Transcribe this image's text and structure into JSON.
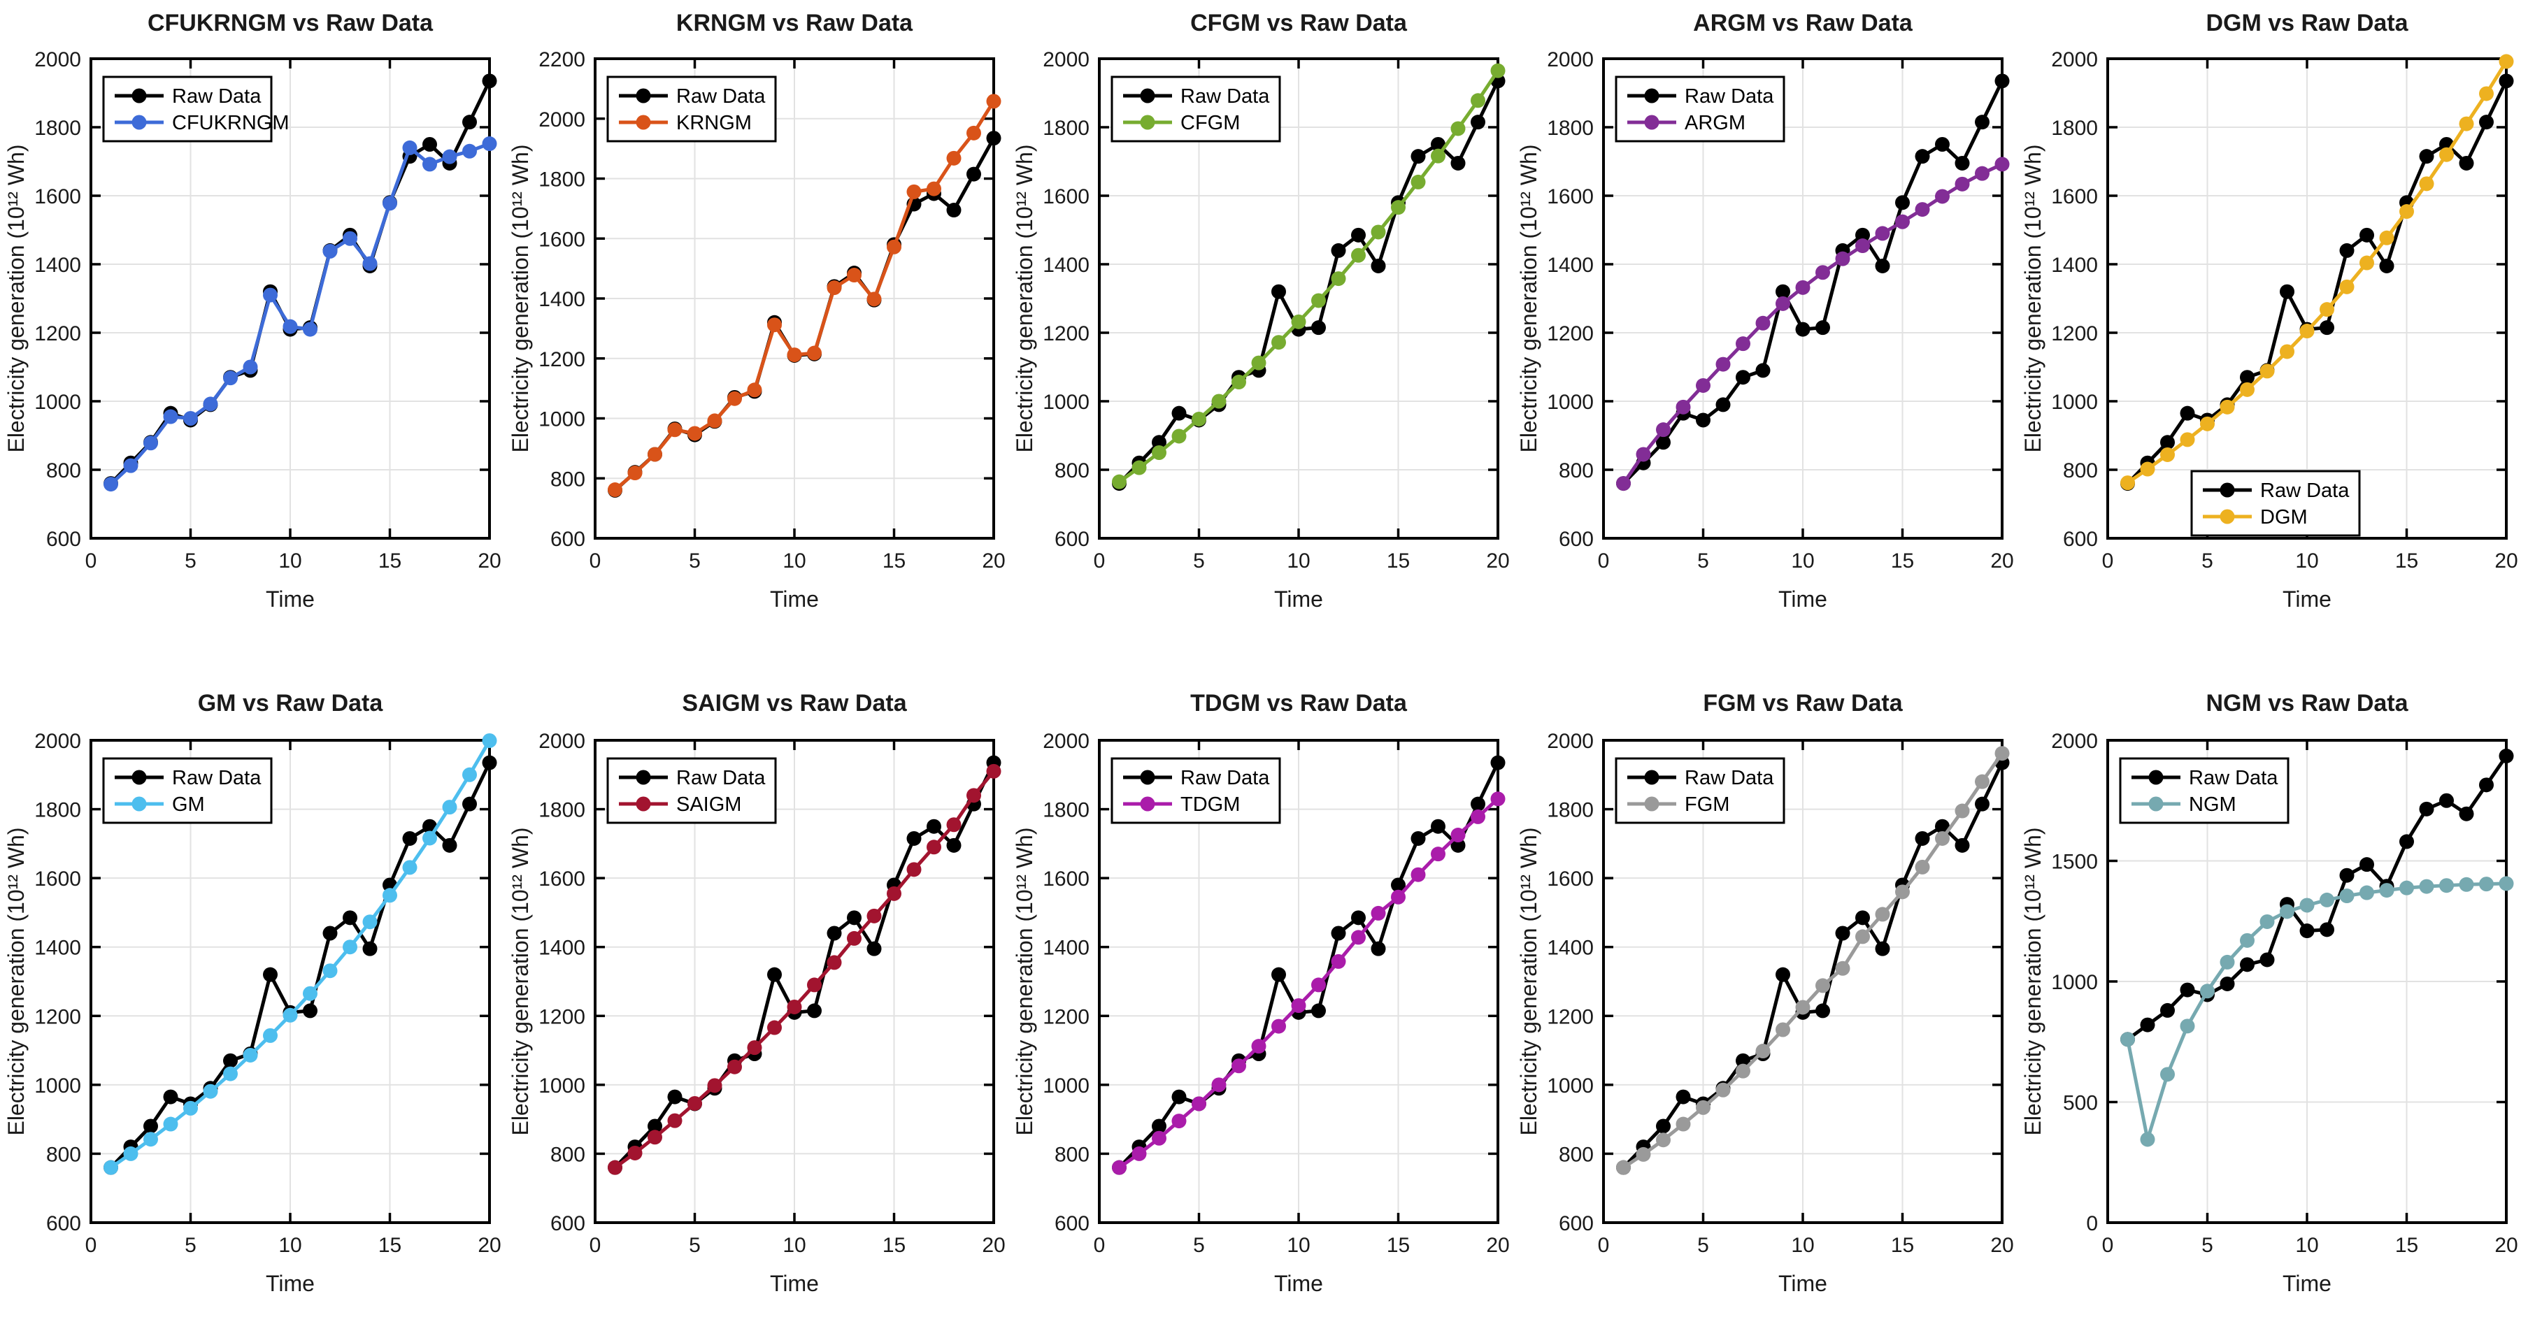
{
  "figure": {
    "background": "#ffffff",
    "rows": 2,
    "cols": 5,
    "axis_color": "#000000",
    "grid_color": "#e2e2e2",
    "text_color": "#1a1a1a"
  },
  "chart_data": [
    {
      "type": "line",
      "title": "CFUKRNGM vs Raw Data",
      "xlabel": "Time",
      "ylabel": "Electricity generation (10¹² Wh)",
      "xlim": [
        0,
        20
      ],
      "ylim": [
        600,
        2000
      ],
      "xticks": [
        0,
        5,
        10,
        15,
        20
      ],
      "yticks": [
        600,
        800,
        1000,
        1200,
        1400,
        1600,
        1800,
        2000
      ],
      "grid": true,
      "legend_location": "northwest",
      "x": [
        1,
        2,
        3,
        4,
        5,
        6,
        7,
        8,
        9,
        10,
        11,
        12,
        13,
        14,
        15,
        16,
        17,
        18,
        19,
        20
      ],
      "series": [
        {
          "name": "Raw Data",
          "color": "#000000",
          "marker": "circle",
          "values": [
            760,
            820,
            880,
            965,
            945,
            990,
            1070,
            1090,
            1320,
            1210,
            1215,
            1440,
            1485,
            1395,
            1580,
            1715,
            1750,
            1695,
            1815,
            1935
          ]
        },
        {
          "name": "CFUKRNGM",
          "color": "#3d6bd8",
          "marker": "circle",
          "values": [
            758,
            812,
            878,
            955,
            950,
            992,
            1068,
            1100,
            1310,
            1218,
            1210,
            1438,
            1475,
            1402,
            1578,
            1740,
            1692,
            1714,
            1730,
            1752
          ]
        }
      ]
    },
    {
      "type": "line",
      "title": "KRNGM vs Raw Data",
      "xlabel": "Time",
      "ylabel": "Electricity generation (10¹² Wh)",
      "xlim": [
        0,
        20
      ],
      "ylim": [
        600,
        2200
      ],
      "xticks": [
        0,
        5,
        10,
        15,
        20
      ],
      "yticks": [
        600,
        800,
        1000,
        1200,
        1400,
        1600,
        1800,
        2000,
        2200
      ],
      "grid": true,
      "legend_location": "northwest",
      "x": [
        1,
        2,
        3,
        4,
        5,
        6,
        7,
        8,
        9,
        10,
        11,
        12,
        13,
        14,
        15,
        16,
        17,
        18,
        19,
        20
      ],
      "series": [
        {
          "name": "Raw Data",
          "color": "#000000",
          "marker": "circle",
          "values": [
            760,
            820,
            880,
            965,
            945,
            990,
            1070,
            1090,
            1320,
            1210,
            1215,
            1440,
            1485,
            1395,
            1580,
            1715,
            1750,
            1695,
            1815,
            1935
          ]
        },
        {
          "name": "KRNGM",
          "color": "#d95319",
          "marker": "circle",
          "values": [
            762,
            818,
            880,
            962,
            950,
            992,
            1066,
            1095,
            1312,
            1212,
            1218,
            1436,
            1478,
            1398,
            1572,
            1756,
            1766,
            1868,
            1952,
            2058
          ]
        }
      ]
    },
    {
      "type": "line",
      "title": "CFGM vs Raw Data",
      "xlabel": "Time",
      "ylabel": "Electricity generation (10¹² Wh)",
      "xlim": [
        0,
        20
      ],
      "ylim": [
        600,
        2000
      ],
      "xticks": [
        0,
        5,
        10,
        15,
        20
      ],
      "yticks": [
        600,
        800,
        1000,
        1200,
        1400,
        1600,
        1800,
        2000
      ],
      "grid": true,
      "legend_location": "northwest",
      "x": [
        1,
        2,
        3,
        4,
        5,
        6,
        7,
        8,
        9,
        10,
        11,
        12,
        13,
        14,
        15,
        16,
        17,
        18,
        19,
        20
      ],
      "series": [
        {
          "name": "Raw Data",
          "color": "#000000",
          "marker": "circle",
          "values": [
            760,
            820,
            880,
            965,
            945,
            990,
            1070,
            1090,
            1320,
            1210,
            1215,
            1440,
            1485,
            1395,
            1580,
            1715,
            1750,
            1695,
            1815,
            1935
          ]
        },
        {
          "name": "CFGM",
          "color": "#77ac30",
          "marker": "circle",
          "values": [
            765,
            806,
            850,
            898,
            948,
            1000,
            1056,
            1112,
            1172,
            1232,
            1294,
            1358,
            1426,
            1494,
            1566,
            1640,
            1716,
            1796,
            1878,
            1965
          ]
        }
      ]
    },
    {
      "type": "line",
      "title": "ARGM vs Raw Data",
      "xlabel": "Time",
      "ylabel": "Electricity generation (10¹² Wh)",
      "xlim": [
        0,
        20
      ],
      "ylim": [
        600,
        2000
      ],
      "xticks": [
        0,
        5,
        10,
        15,
        20
      ],
      "yticks": [
        600,
        800,
        1000,
        1200,
        1400,
        1600,
        1800,
        2000
      ],
      "grid": true,
      "legend_location": "northwest",
      "x": [
        1,
        2,
        3,
        4,
        5,
        6,
        7,
        8,
        9,
        10,
        11,
        12,
        13,
        14,
        15,
        16,
        17,
        18,
        19,
        20
      ],
      "series": [
        {
          "name": "Raw Data",
          "color": "#000000",
          "marker": "circle",
          "values": [
            760,
            820,
            880,
            965,
            945,
            990,
            1070,
            1090,
            1320,
            1210,
            1215,
            1440,
            1485,
            1395,
            1580,
            1715,
            1750,
            1695,
            1815,
            1935
          ]
        },
        {
          "name": "ARGM",
          "color": "#822d96",
          "marker": "circle",
          "values": [
            760,
            845,
            917,
            983,
            1046,
            1108,
            1168,
            1228,
            1285,
            1332,
            1376,
            1416,
            1454,
            1490,
            1524,
            1560,
            1598,
            1634,
            1665,
            1692
          ]
        }
      ]
    },
    {
      "type": "line",
      "title": "DGM vs Raw Data",
      "xlabel": "Time",
      "ylabel": "Electricity generation (10¹² Wh)",
      "xlim": [
        0,
        20
      ],
      "ylim": [
        600,
        2000
      ],
      "xticks": [
        0,
        5,
        10,
        15,
        20
      ],
      "yticks": [
        600,
        800,
        1000,
        1200,
        1400,
        1600,
        1800,
        2000
      ],
      "grid": true,
      "legend_location": "south",
      "x": [
        1,
        2,
        3,
        4,
        5,
        6,
        7,
        8,
        9,
        10,
        11,
        12,
        13,
        14,
        15,
        16,
        17,
        18,
        19,
        20
      ],
      "series": [
        {
          "name": "Raw Data",
          "color": "#000000",
          "marker": "circle",
          "values": [
            760,
            820,
            880,
            965,
            945,
            990,
            1070,
            1090,
            1320,
            1210,
            1215,
            1440,
            1485,
            1395,
            1580,
            1715,
            1750,
            1695,
            1815,
            1935
          ]
        },
        {
          "name": "DGM",
          "color": "#edb120",
          "marker": "circle",
          "values": [
            762,
            802,
            844,
            888,
            934,
            983,
            1034,
            1088,
            1145,
            1205,
            1268,
            1334,
            1404,
            1477,
            1554,
            1635,
            1720,
            1810,
            1898,
            1992
          ]
        }
      ]
    },
    {
      "type": "line",
      "title": "GM vs Raw Data",
      "xlabel": "Time",
      "ylabel": "Electricity generation (10¹² Wh)",
      "xlim": [
        0,
        20
      ],
      "ylim": [
        600,
        2000
      ],
      "xticks": [
        0,
        5,
        10,
        15,
        20
      ],
      "yticks": [
        600,
        800,
        1000,
        1200,
        1400,
        1600,
        1800,
        2000
      ],
      "grid": true,
      "legend_location": "northwest",
      "x": [
        1,
        2,
        3,
        4,
        5,
        6,
        7,
        8,
        9,
        10,
        11,
        12,
        13,
        14,
        15,
        16,
        17,
        18,
        19,
        20
      ],
      "series": [
        {
          "name": "Raw Data",
          "color": "#000000",
          "marker": "circle",
          "values": [
            760,
            820,
            880,
            965,
            945,
            990,
            1070,
            1090,
            1320,
            1210,
            1215,
            1440,
            1485,
            1395,
            1580,
            1715,
            1750,
            1695,
            1815,
            1935
          ]
        },
        {
          "name": "GM",
          "color": "#4dbeee",
          "marker": "circle",
          "values": [
            760,
            800,
            842,
            886,
            932,
            981,
            1032,
            1086,
            1143,
            1202,
            1265,
            1331,
            1400,
            1473,
            1550,
            1631,
            1716,
            1806,
            1900,
            1999
          ]
        }
      ]
    },
    {
      "type": "line",
      "title": "SAIGM vs Raw Data",
      "xlabel": "Time",
      "ylabel": "Electricity generation (10¹² Wh)",
      "xlim": [
        0,
        20
      ],
      "ylim": [
        600,
        2000
      ],
      "xticks": [
        0,
        5,
        10,
        15,
        20
      ],
      "yticks": [
        600,
        800,
        1000,
        1200,
        1400,
        1600,
        1800,
        2000
      ],
      "grid": true,
      "legend_location": "northwest",
      "x": [
        1,
        2,
        3,
        4,
        5,
        6,
        7,
        8,
        9,
        10,
        11,
        12,
        13,
        14,
        15,
        16,
        17,
        18,
        19,
        20
      ],
      "series": [
        {
          "name": "Raw Data",
          "color": "#000000",
          "marker": "circle",
          "values": [
            760,
            820,
            880,
            965,
            945,
            990,
            1070,
            1090,
            1320,
            1210,
            1215,
            1440,
            1485,
            1395,
            1580,
            1715,
            1750,
            1695,
            1815,
            1935
          ]
        },
        {
          "name": "SAIGM",
          "color": "#a2142f",
          "marker": "circle",
          "values": [
            760,
            802,
            848,
            896,
            946,
            998,
            1052,
            1108,
            1166,
            1226,
            1290,
            1355,
            1425,
            1490,
            1555,
            1625,
            1690,
            1755,
            1840,
            1910
          ]
        }
      ]
    },
    {
      "type": "line",
      "title": "TDGM vs Raw Data",
      "xlabel": "Time",
      "ylabel": "Electricity generation (10¹² Wh)",
      "xlim": [
        0,
        20
      ],
      "ylim": [
        600,
        2000
      ],
      "xticks": [
        0,
        5,
        10,
        15,
        20
      ],
      "yticks": [
        600,
        800,
        1000,
        1200,
        1400,
        1600,
        1800,
        2000
      ],
      "grid": true,
      "legend_location": "northwest",
      "x": [
        1,
        2,
        3,
        4,
        5,
        6,
        7,
        8,
        9,
        10,
        11,
        12,
        13,
        14,
        15,
        16,
        17,
        18,
        19,
        20
      ],
      "series": [
        {
          "name": "Raw Data",
          "color": "#000000",
          "marker": "circle",
          "values": [
            760,
            820,
            880,
            965,
            945,
            990,
            1070,
            1090,
            1320,
            1210,
            1215,
            1440,
            1485,
            1395,
            1580,
            1715,
            1750,
            1695,
            1815,
            1935
          ]
        },
        {
          "name": "TDGM",
          "color": "#aa1caa",
          "marker": "circle",
          "values": [
            760,
            800,
            845,
            895,
            945,
            1000,
            1055,
            1112,
            1170,
            1230,
            1290,
            1358,
            1428,
            1498,
            1545,
            1610,
            1670,
            1725,
            1778,
            1830
          ]
        }
      ]
    },
    {
      "type": "line",
      "title": "FGM vs Raw Data",
      "xlabel": "Time",
      "ylabel": "Electricity generation (10¹² Wh)",
      "xlim": [
        0,
        20
      ],
      "ylim": [
        600,
        2000
      ],
      "xticks": [
        0,
        5,
        10,
        15,
        20
      ],
      "yticks": [
        600,
        800,
        1000,
        1200,
        1400,
        1600,
        1800,
        2000
      ],
      "grid": true,
      "legend_location": "northwest",
      "x": [
        1,
        2,
        3,
        4,
        5,
        6,
        7,
        8,
        9,
        10,
        11,
        12,
        13,
        14,
        15,
        16,
        17,
        18,
        19,
        20
      ],
      "series": [
        {
          "name": "Raw Data",
          "color": "#000000",
          "marker": "circle",
          "values": [
            760,
            820,
            880,
            965,
            945,
            990,
            1070,
            1090,
            1320,
            1210,
            1215,
            1440,
            1485,
            1395,
            1580,
            1715,
            1750,
            1695,
            1815,
            1935
          ]
        },
        {
          "name": "FGM",
          "color": "#9a9a9a",
          "marker": "circle",
          "values": [
            760,
            798,
            840,
            886,
            934,
            985,
            1040,
            1098,
            1160,
            1225,
            1288,
            1338,
            1430,
            1495,
            1560,
            1632,
            1715,
            1795,
            1880,
            1962
          ]
        }
      ]
    },
    {
      "type": "line",
      "title": "NGM vs Raw Data",
      "xlabel": "Time",
      "ylabel": "Electricity generation (10¹² Wh)",
      "xlim": [
        0,
        20
      ],
      "ylim": [
        0,
        2000
      ],
      "xticks": [
        0,
        5,
        10,
        15,
        20
      ],
      "yticks": [
        0,
        500,
        1000,
        1500,
        2000
      ],
      "grid": true,
      "legend_location": "northwest",
      "x": [
        1,
        2,
        3,
        4,
        5,
        6,
        7,
        8,
        9,
        10,
        11,
        12,
        13,
        14,
        15,
        16,
        17,
        18,
        19,
        20
      ],
      "series": [
        {
          "name": "Raw Data",
          "color": "#000000",
          "marker": "circle",
          "values": [
            760,
            820,
            880,
            965,
            945,
            990,
            1070,
            1090,
            1320,
            1210,
            1215,
            1440,
            1485,
            1395,
            1580,
            1715,
            1750,
            1695,
            1815,
            1935
          ]
        },
        {
          "name": "NGM",
          "color": "#76a9b0",
          "marker": "circle",
          "values": [
            760,
            345,
            615,
            815,
            960,
            1080,
            1170,
            1248,
            1290,
            1316,
            1338,
            1355,
            1368,
            1378,
            1388,
            1394,
            1398,
            1402,
            1404,
            1406
          ]
        }
      ]
    }
  ]
}
